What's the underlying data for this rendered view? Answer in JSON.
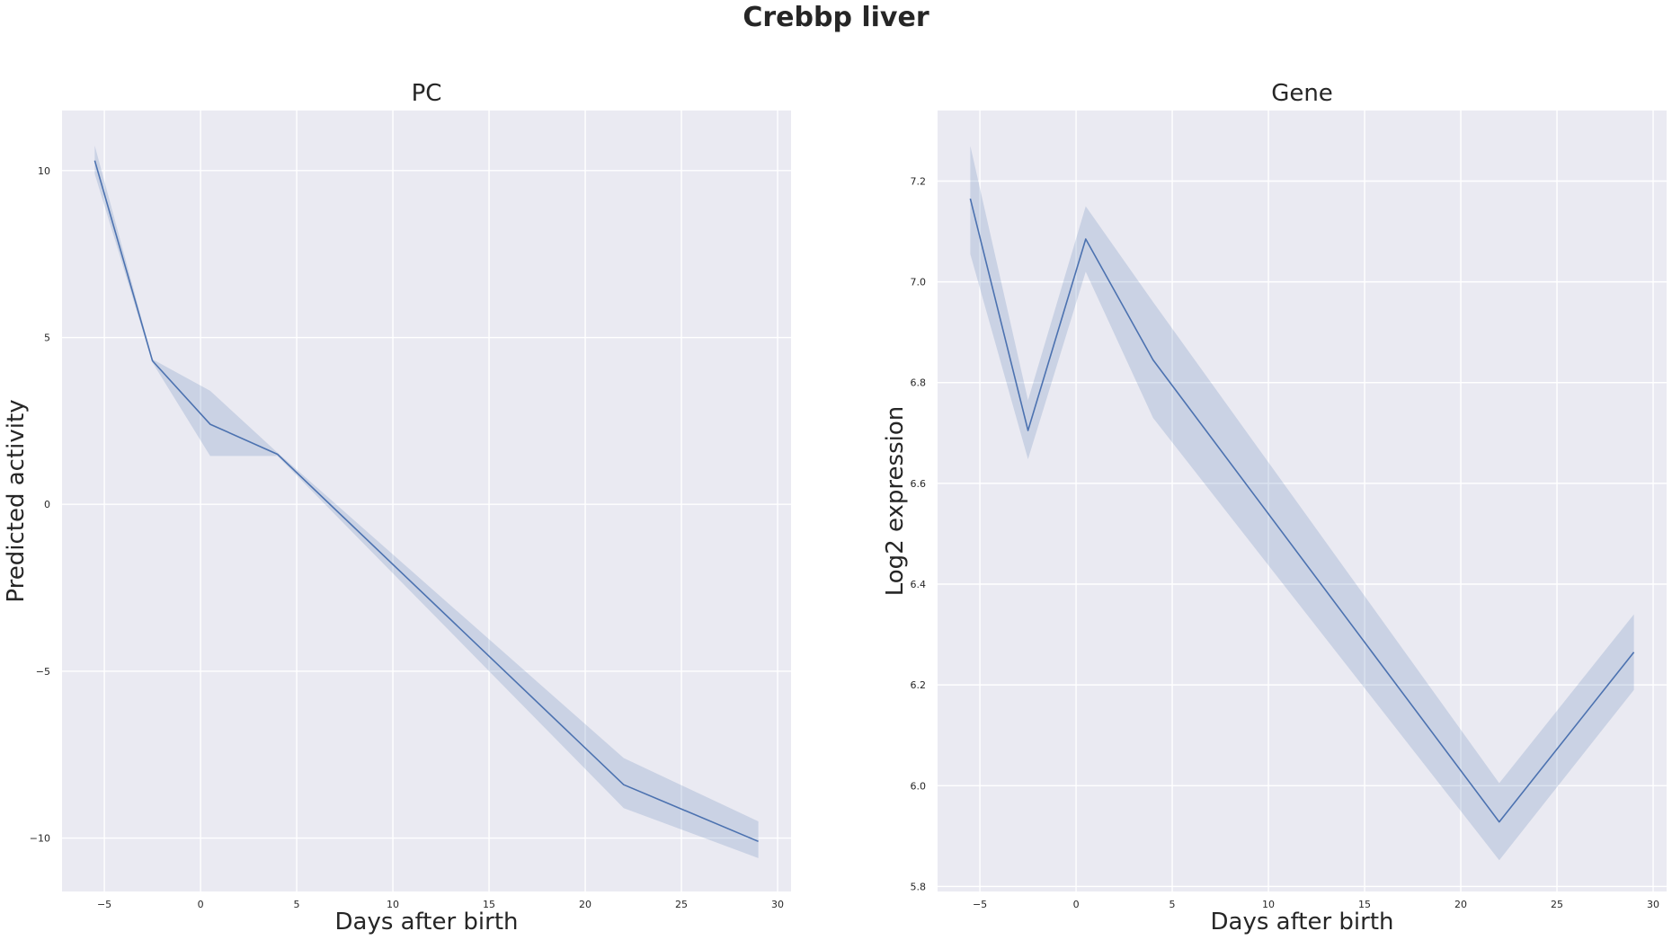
{
  "figure": {
    "title": "Crebbp liver"
  },
  "colors": {
    "background": "#EAEAF2",
    "grid": "#FFFFFF",
    "series": "#4C72B0",
    "text": "#262626"
  },
  "chart_data": [
    {
      "type": "line",
      "title": "PC",
      "xlabel": "Days after birth",
      "ylabel": "Predicted activity",
      "xlim": [
        -7.2,
        30.7
      ],
      "ylim": [
        -11.6,
        11.8
      ],
      "xticks": [
        -5,
        0,
        5,
        10,
        15,
        20,
        25,
        30
      ],
      "yticks": [
        -10,
        -5,
        0,
        5,
        10
      ],
      "grid": true,
      "confidence_band": true,
      "x": [
        -5.5,
        -2.5,
        0.5,
        4,
        22,
        29
      ],
      "series": [
        {
          "values": [
            10.3,
            4.3,
            2.4,
            1.5,
            -8.4,
            -10.1
          ],
          "ci_lower": [
            9.9,
            4.25,
            1.45,
            1.45,
            -9.1,
            -10.6
          ],
          "ci_upper": [
            10.75,
            4.35,
            3.4,
            1.55,
            -7.6,
            -9.5
          ]
        }
      ]
    },
    {
      "type": "line",
      "title": "Gene",
      "xlabel": "Days after birth",
      "ylabel": "Log2 expression",
      "xlim": [
        -7.2,
        30.7
      ],
      "ylim": [
        5.79,
        7.34
      ],
      "xticks": [
        -5,
        0,
        5,
        10,
        15,
        20,
        25,
        30
      ],
      "yticks": [
        5.8,
        6.0,
        6.2,
        6.4,
        6.6,
        6.8,
        7.0,
        7.2
      ],
      "yticks_labels": [
        "5.8",
        "6.0",
        "6.2",
        "6.4",
        "6.6",
        "6.8",
        "7.0",
        "7.2"
      ],
      "grid": true,
      "confidence_band": true,
      "x": [
        -5.5,
        -2.5,
        0.5,
        4,
        22,
        29
      ],
      "series": [
        {
          "values": [
            7.165,
            6.705,
            7.085,
            6.845,
            5.928,
            6.265
          ],
          "ci_lower": [
            7.055,
            6.648,
            7.02,
            6.73,
            5.852,
            6.19
          ],
          "ci_upper": [
            7.27,
            6.765,
            7.15,
            6.96,
            6.005,
            6.34
          ]
        }
      ]
    }
  ]
}
